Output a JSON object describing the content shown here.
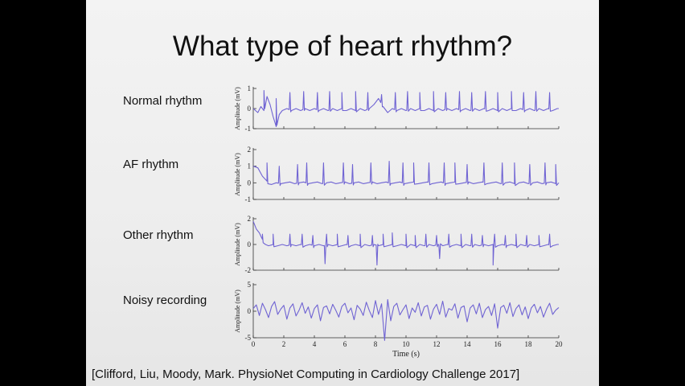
{
  "slide": {
    "title": "What type of heart rhythm?",
    "citation": "[Clifford, Liu, Moody, Mark. PhysioNet Computing in Cardiology Challenge 2017]"
  },
  "colors": {
    "trace": "#6f63d3",
    "background": "#f0f0f0",
    "frame": "#000000"
  },
  "chart_data": [
    {
      "type": "line",
      "label": "Normal rhythm",
      "ylabel": "Amplitude (mV)",
      "xlim": [
        0,
        20
      ],
      "ylim": [
        -1,
        1
      ],
      "yticks": [
        -1,
        0,
        1
      ],
      "series": [
        {
          "x": [
            0.0,
            0.3,
            0.5,
            0.7,
            0.9,
            1.1,
            1.3,
            1.5,
            1.7,
            1.9,
            2.2,
            2.5,
            2.8,
            3.1,
            3.4,
            3.7,
            4.0,
            4.3,
            4.6,
            4.9,
            5.2,
            5.5,
            5.8,
            6.1,
            6.4,
            6.7,
            7.0,
            7.3,
            7.6,
            7.9,
            8.2,
            8.5,
            8.8,
            9.1,
            9.4,
            9.7,
            10.0,
            10.3,
            10.6,
            10.9,
            11.2,
            11.5,
            11.8,
            12.1,
            12.4,
            12.7,
            13.0,
            13.3,
            13.6,
            13.9,
            14.2,
            14.5,
            14.8,
            15.1,
            15.4,
            15.7,
            16.0,
            16.3,
            16.6,
            16.9,
            17.2,
            17.5,
            17.8,
            18.1,
            18.4,
            18.7,
            19.0,
            19.3,
            19.6,
            19.9,
            20.0
          ],
          "y": [
            0.0,
            -0.2,
            0.1,
            -0.1,
            0.6,
            0.2,
            -0.4,
            -0.9,
            -0.3,
            -0.1,
            0.0,
            -0.1,
            0.0,
            -0.1,
            0.0,
            -0.1,
            0.0,
            -0.1,
            0.0,
            -0.1,
            0.0,
            -0.1,
            0.0,
            -0.1,
            0.0,
            -0.1,
            0.0,
            -0.1,
            0.0,
            0.2,
            0.5,
            0.1,
            -0.2,
            0.0,
            -0.1,
            0.0,
            -0.1,
            0.0,
            -0.1,
            0.0,
            -0.1,
            0.0,
            -0.1,
            0.0,
            -0.1,
            0.0,
            -0.1,
            0.0,
            -0.1,
            0.0,
            -0.1,
            0.0,
            -0.1,
            0.0,
            -0.1,
            0.0,
            -0.1,
            0.0,
            -0.1,
            0.0,
            -0.1,
            0.0,
            -0.1,
            0.0,
            -0.1,
            0.0,
            -0.1,
            0.0,
            -0.1,
            0.0,
            0.0
          ],
          "peaks_x": [
            0.7,
            1.5,
            2.4,
            3.3,
            4.2,
            5.0,
            5.8,
            6.7,
            7.5,
            8.4,
            9.3,
            10.1,
            10.9,
            11.8,
            12.6,
            13.5,
            14.3,
            15.2,
            16.0,
            16.9,
            17.7,
            18.5,
            19.4
          ],
          "peaks_y": [
            0.9,
            0.5,
            0.8,
            0.85,
            0.8,
            0.85,
            0.8,
            0.85,
            0.8,
            0.7,
            0.8,
            0.85,
            0.8,
            0.85,
            0.8,
            0.85,
            0.8,
            0.85,
            0.8,
            0.85,
            0.8,
            0.85,
            0.8
          ]
        }
      ]
    },
    {
      "type": "line",
      "label": "AF rhythm",
      "ylabel": "Amplitude (mV)",
      "xlim": [
        0,
        20
      ],
      "ylim": [
        -1,
        2
      ],
      "yticks": [
        -1,
        0,
        1,
        2
      ],
      "series": [
        {
          "x": [
            0.0,
            0.3,
            0.6,
            0.9,
            1.2,
            1.5,
            1.8,
            2.1,
            2.4,
            2.7,
            3.0,
            3.3,
            3.6,
            3.9,
            4.2,
            4.5,
            4.8,
            5.1,
            5.4,
            5.7,
            6.0,
            6.3,
            6.6,
            6.9,
            7.2,
            7.5,
            7.8,
            8.1,
            8.4,
            8.7,
            9.0,
            9.3,
            9.6,
            9.9,
            10.2,
            10.5,
            10.8,
            11.1,
            11.4,
            11.7,
            12.0,
            12.3,
            12.6,
            12.9,
            13.2,
            13.5,
            13.8,
            14.1,
            14.4,
            14.7,
            15.0,
            15.3,
            15.6,
            15.9,
            16.2,
            16.5,
            16.8,
            17.1,
            17.4,
            17.7,
            18.0,
            18.3,
            18.6,
            18.9,
            19.2,
            19.5,
            19.8,
            20.0
          ],
          "y": [
            1.0,
            0.9,
            0.4,
            0.1,
            -0.1,
            0.0,
            -0.05,
            0.0,
            0.05,
            -0.05,
            0.0,
            0.05,
            -0.05,
            0.0,
            0.05,
            -0.05,
            0.0,
            0.05,
            -0.05,
            0.0,
            0.05,
            -0.05,
            0.0,
            0.05,
            -0.05,
            0.0,
            0.05,
            -0.05,
            0.0,
            0.05,
            -0.05,
            0.0,
            0.05,
            -0.05,
            0.0,
            0.05,
            -0.05,
            0.0,
            0.05,
            -0.05,
            0.0,
            0.05,
            -0.05,
            0.0,
            0.05,
            -0.05,
            0.0,
            0.05,
            -0.05,
            0.0,
            0.05,
            -0.05,
            0.0,
            0.05,
            -0.05,
            0.0,
            0.05,
            -0.05,
            0.0,
            0.05,
            -0.05,
            0.0,
            0.05,
            -0.05,
            0.0,
            0.05,
            -0.05,
            0.0
          ],
          "peaks_x": [
            0.9,
            1.7,
            2.9,
            3.5,
            4.6,
            5.9,
            6.5,
            7.7,
            8.9,
            9.8,
            10.5,
            11.5,
            12.5,
            13.2,
            14.0,
            15.1,
            16.3,
            17.1,
            18.1,
            19.1,
            19.8
          ],
          "peaks_y": [
            1.2,
            1.0,
            1.1,
            1.2,
            1.2,
            1.2,
            1.1,
            1.2,
            1.3,
            1.2,
            1.2,
            1.2,
            1.2,
            1.2,
            1.1,
            1.2,
            1.2,
            1.2,
            1.1,
            1.2,
            1.1
          ]
        }
      ]
    },
    {
      "type": "line",
      "label": "Other rhythm",
      "ylabel": "Amplitude (mV)",
      "xlim": [
        0,
        20
      ],
      "ylim": [
        -2,
        2
      ],
      "yticks": [
        -2,
        0,
        2
      ],
      "series": [
        {
          "x": [
            0.0,
            0.2,
            0.4,
            0.6,
            0.8,
            1.0,
            1.3,
            1.6,
            1.9,
            2.2,
            2.5,
            2.8,
            3.1,
            3.4,
            3.7,
            4.0,
            4.3,
            4.6,
            4.9,
            5.2,
            5.5,
            5.8,
            6.1,
            6.4,
            6.7,
            7.0,
            7.3,
            7.6,
            7.9,
            8.2,
            8.5,
            8.8,
            9.1,
            9.4,
            9.7,
            10.0,
            10.3,
            10.6,
            10.9,
            11.2,
            11.5,
            11.8,
            12.1,
            12.4,
            12.7,
            13.0,
            13.3,
            13.6,
            13.9,
            14.2,
            14.5,
            14.8,
            15.1,
            15.4,
            15.7,
            16.0,
            16.3,
            16.6,
            16.9,
            17.2,
            17.5,
            17.8,
            18.1,
            18.4,
            18.7,
            19.0,
            19.3,
            19.6,
            19.9,
            20.0
          ],
          "y": [
            1.8,
            1.2,
            0.9,
            0.4,
            0.0,
            -0.1,
            0.0,
            -0.1,
            0.0,
            -0.1,
            0.0,
            -0.1,
            0.0,
            -0.1,
            0.0,
            -0.1,
            0.0,
            -0.1,
            0.0,
            -0.1,
            0.0,
            -0.1,
            0.0,
            -0.1,
            0.0,
            -0.1,
            0.0,
            -0.1,
            0.0,
            -0.1,
            0.0,
            -0.1,
            0.0,
            -0.1,
            0.0,
            -0.1,
            0.0,
            -0.1,
            0.0,
            -0.1,
            0.0,
            -0.1,
            0.0,
            -0.1,
            0.0,
            -0.1,
            0.0,
            -0.1,
            0.0,
            -0.1,
            0.0,
            -0.1,
            0.0,
            -0.1,
            0.0,
            -0.1,
            0.0,
            -0.1,
            0.0,
            -0.1,
            0.0,
            -0.1,
            0.0,
            -0.1,
            0.0,
            -0.1,
            0.0,
            -0.1,
            0.0,
            0.0
          ],
          "peaks_x": [
            0.6,
            1.3,
            2.4,
            3.2,
            3.9,
            4.8,
            5.5,
            6.2,
            7.0,
            7.8,
            8.5,
            9.1,
            10.0,
            10.6,
            11.3,
            12.0,
            12.8,
            13.6,
            14.3,
            15.0,
            15.8,
            16.5,
            17.2,
            17.9,
            18.7,
            19.4
          ],
          "peaks_y": [
            0.8,
            0.8,
            0.8,
            0.8,
            0.7,
            0.8,
            0.8,
            0.7,
            0.8,
            0.7,
            0.8,
            0.9,
            0.8,
            0.7,
            0.8,
            0.7,
            0.8,
            0.8,
            0.8,
            0.7,
            0.8,
            0.7,
            0.8,
            0.7,
            0.7,
            0.8
          ],
          "dips_x": [
            4.7,
            8.1,
            12.2,
            15.7
          ],
          "dips_y": [
            -1.5,
            -1.6,
            -1.1,
            -1.6
          ]
        }
      ]
    },
    {
      "type": "line",
      "label": "Noisy recording",
      "ylabel": "Amplitude (mV)",
      "xlabel": "Time (s)",
      "xlim": [
        0,
        20
      ],
      "xticks": [
        0,
        2,
        4,
        6,
        8,
        10,
        12,
        14,
        16,
        18,
        20
      ],
      "ylim": [
        -5,
        5
      ],
      "yticks": [
        -5,
        0,
        5
      ],
      "series": [
        {
          "x": [
            0.0,
            0.2,
            0.4,
            0.6,
            0.8,
            1.0,
            1.2,
            1.4,
            1.6,
            1.8,
            2.0,
            2.2,
            2.4,
            2.6,
            2.8,
            3.0,
            3.2,
            3.4,
            3.6,
            3.8,
            4.0,
            4.2,
            4.4,
            4.6,
            4.8,
            5.0,
            5.2,
            5.4,
            5.6,
            5.8,
            6.0,
            6.2,
            6.4,
            6.6,
            6.8,
            7.0,
            7.2,
            7.4,
            7.6,
            7.8,
            8.0,
            8.2,
            8.4,
            8.6,
            8.8,
            9.0,
            9.2,
            9.4,
            9.6,
            9.8,
            10.0,
            10.2,
            10.4,
            10.6,
            10.8,
            11.0,
            11.2,
            11.4,
            11.6,
            11.8,
            12.0,
            12.2,
            12.4,
            12.6,
            12.8,
            13.0,
            13.2,
            13.4,
            13.6,
            13.8,
            14.0,
            14.2,
            14.4,
            14.6,
            14.8,
            15.0,
            15.2,
            15.4,
            15.6,
            15.8,
            16.0,
            16.2,
            16.4,
            16.6,
            16.8,
            17.0,
            17.2,
            17.4,
            17.6,
            17.8,
            18.0,
            18.2,
            18.4,
            18.6,
            18.8,
            19.0,
            19.2,
            19.4,
            19.6,
            19.8,
            20.0
          ],
          "y": [
            0.5,
            1.2,
            -0.8,
            1.5,
            0.3,
            -1.2,
            0.9,
            1.8,
            -0.6,
            0.4,
            1.1,
            -1.5,
            0.6,
            1.4,
            -0.9,
            0.2,
            1.6,
            -0.4,
            0.8,
            -1.3,
            0.5,
            1.2,
            -1.8,
            0.7,
            1.0,
            -0.5,
            1.3,
            0.2,
            -1.1,
            0.9,
            1.5,
            -0.3,
            0.6,
            -1.6,
            1.1,
            0.4,
            -0.8,
            1.7,
            0.1,
            -1.2,
            2.0,
            -0.6,
            1.4,
            -5.5,
            2.2,
            -1.8,
            0.9,
            1.5,
            -0.7,
            0.3,
            1.2,
            -1.4,
            0.6,
            -0.2,
            1.6,
            -0.9,
            0.8,
            1.1,
            -1.5,
            0.4,
            1.3,
            -0.6,
            1.9,
            -1.1,
            0.5,
            0.2,
            1.4,
            -1.3,
            0.7,
            1.0,
            -2.0,
            0.6,
            1.2,
            -0.5,
            1.5,
            -1.2,
            0.3,
            0.9,
            -0.8,
            1.4,
            -3.2,
            0.7,
            1.1,
            -0.4,
            1.6,
            -1.0,
            0.5,
            1.2,
            -0.7,
            0.8,
            -1.4,
            0.6,
            1.3,
            -0.3,
            0.9,
            -1.1,
            0.4,
            1.5,
            -0.6,
            0.2,
            0.7
          ]
        }
      ]
    }
  ]
}
